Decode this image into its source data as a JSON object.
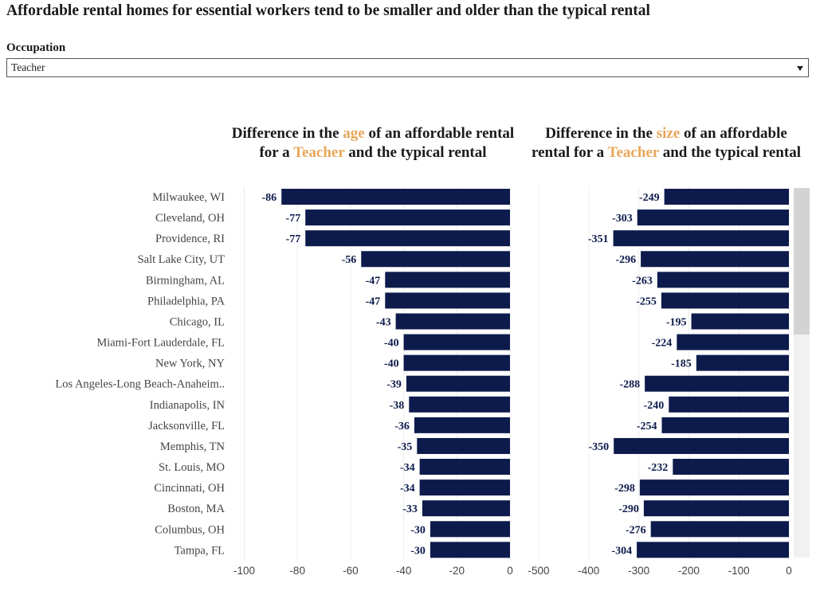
{
  "page": {
    "title": "Affordable rental homes for essential workers tend to be smaller and older than the typical rental"
  },
  "filter": {
    "label": "Occupation",
    "value": "Teacher"
  },
  "colors": {
    "bar": "#0d1b4c",
    "highlight": "#e8a659",
    "label_text": "#0d1b4c"
  },
  "chart_data": [
    {
      "type": "bar",
      "orientation": "horizontal",
      "title_parts": [
        "Difference in the ",
        "age",
        " of an affordable rental for a ",
        "Teacher",
        " and the typical rental"
      ],
      "categories": [
        "Milwaukee, WI",
        "Cleveland, OH",
        "Providence, RI",
        "Salt Lake City, UT",
        "Birmingham, AL",
        "Philadelphia, PA",
        "Chicago, IL",
        "Miami-Fort Lauderdale, FL",
        "New York, NY",
        "Los Angeles-Long Beach-Anaheim..",
        "Indianapolis, IN",
        "Jacksonville, FL",
        "Memphis, TN",
        "St. Louis, MO",
        "Cincinnati, OH",
        "Boston, MA",
        "Columbus, OH",
        "Tampa, FL"
      ],
      "values": [
        -86,
        -77,
        -77,
        -56,
        -47,
        -47,
        -43,
        -40,
        -40,
        -39,
        -38,
        -36,
        -35,
        -34,
        -34,
        -33,
        -30,
        -30
      ],
      "xlim": [
        -100,
        0
      ],
      "xticks": [
        -100,
        -80,
        -60,
        -40,
        -20,
        0
      ],
      "grid": true
    },
    {
      "type": "bar",
      "orientation": "horizontal",
      "title_parts": [
        "Difference in the ",
        "size",
        " of an affordable rental for a ",
        "Teacher",
        " and the typical rental"
      ],
      "categories": [
        "Milwaukee, WI",
        "Cleveland, OH",
        "Providence, RI",
        "Salt Lake City, UT",
        "Birmingham, AL",
        "Philadelphia, PA",
        "Chicago, IL",
        "Miami-Fort Lauderdale, FL",
        "New York, NY",
        "Los Angeles-Long Beach-Anaheim..",
        "Indianapolis, IN",
        "Jacksonville, FL",
        "Memphis, TN",
        "St. Louis, MO",
        "Cincinnati, OH",
        "Boston, MA",
        "Columbus, OH",
        "Tampa, FL"
      ],
      "values": [
        -249,
        -303,
        -351,
        -296,
        -263,
        -255,
        -195,
        -224,
        -185,
        -288,
        -240,
        -254,
        -350,
        -232,
        -298,
        -290,
        -276,
        -304
      ],
      "xlim": [
        -500,
        0
      ],
      "xticks": [
        -500,
        -400,
        -300,
        -200,
        -100,
        0
      ],
      "grid": true
    }
  ]
}
